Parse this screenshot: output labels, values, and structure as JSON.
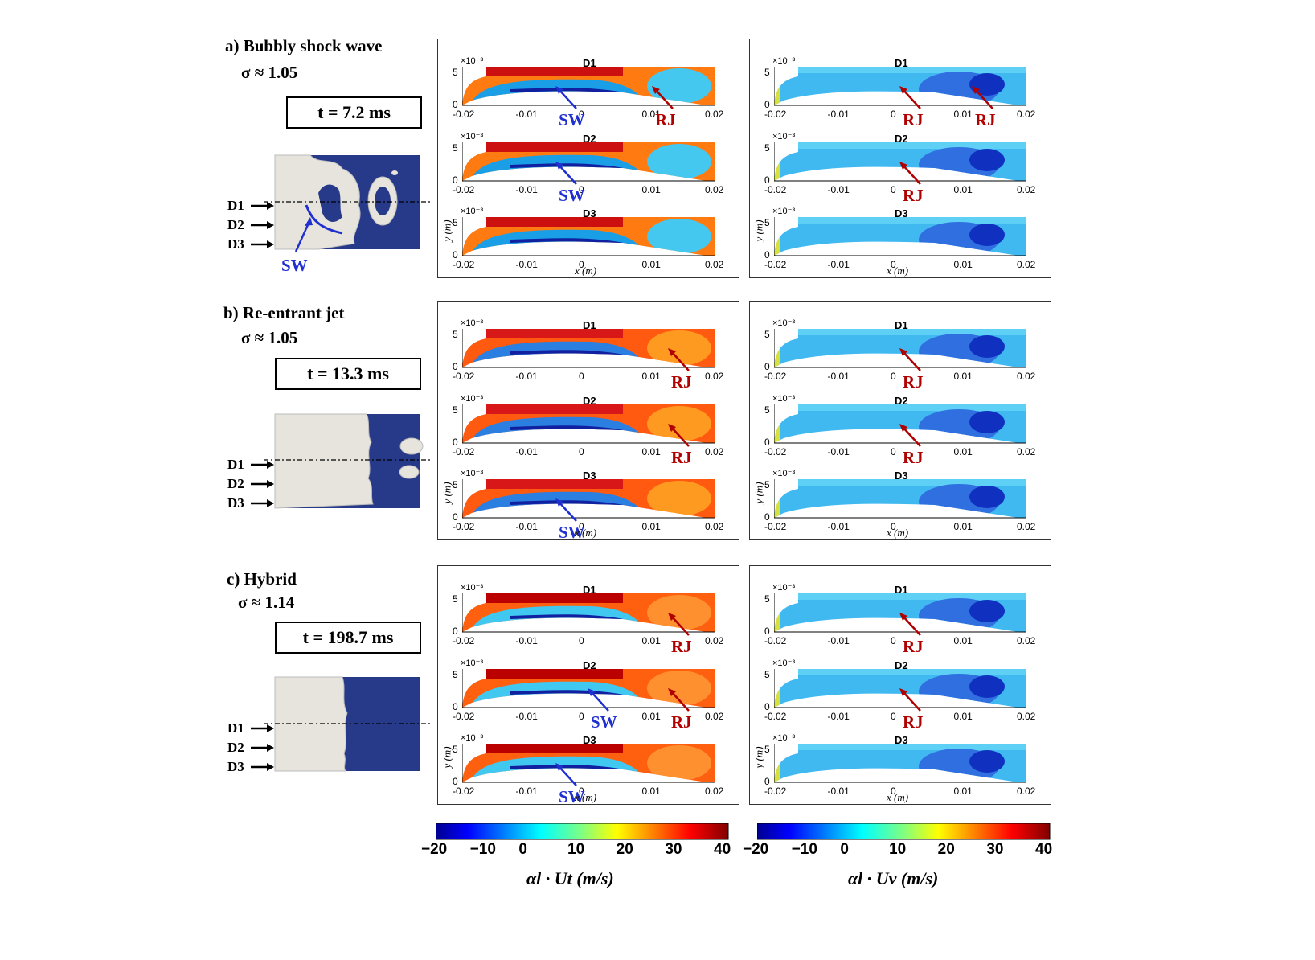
{
  "figure": {
    "rows": [
      {
        "id": "a",
        "title": "a) Bubbly shock wave",
        "sigma": "σ ≈ 1.05",
        "time": "t = 7.2 ms",
        "stations": [
          "D1",
          "D2",
          "D3"
        ],
        "render_annotation": "SW",
        "left_panel": {
          "plots": [
            {
              "label": "D1",
              "annotations": [
                "SW",
                "RJ"
              ]
            },
            {
              "label": "D2",
              "annotations": [
                "SW"
              ]
            },
            {
              "label": "D3",
              "annotations": []
            }
          ]
        },
        "right_panel": {
          "plots": [
            {
              "label": "D1",
              "annotations": [
                "RJ",
                "RJ"
              ]
            },
            {
              "label": "D2",
              "annotations": [
                "RJ"
              ]
            },
            {
              "label": "D3",
              "annotations": []
            }
          ]
        }
      },
      {
        "id": "b",
        "title": "b) Re-entrant jet",
        "sigma": "σ ≈ 1.05",
        "time": "t = 13.3 ms",
        "stations": [
          "D1",
          "D2",
          "D3"
        ],
        "left_panel": {
          "plots": [
            {
              "label": "D1",
              "annotations": [
                "RJ"
              ]
            },
            {
              "label": "D2",
              "annotations": [
                "RJ"
              ]
            },
            {
              "label": "D3",
              "annotations": [
                "SW"
              ]
            }
          ]
        },
        "right_panel": {
          "plots": [
            {
              "label": "D1",
              "annotations": [
                "RJ"
              ]
            },
            {
              "label": "D2",
              "annotations": [
                "RJ"
              ]
            },
            {
              "label": "D3",
              "annotations": []
            }
          ]
        }
      },
      {
        "id": "c",
        "title": "c) Hybrid",
        "sigma": "σ ≈ 1.14",
        "time": "t = 198.7 ms",
        "stations": [
          "D1",
          "D2",
          "D3"
        ],
        "left_panel": {
          "plots": [
            {
              "label": "D1",
              "annotations": [
                "RJ"
              ]
            },
            {
              "label": "D2",
              "annotations": [
                "RJ",
                "SW"
              ]
            },
            {
              "label": "D3",
              "annotations": [
                "SW"
              ]
            }
          ]
        },
        "right_panel": {
          "plots": [
            {
              "label": "D1",
              "annotations": [
                "RJ"
              ]
            },
            {
              "label": "D2",
              "annotations": [
                "RJ"
              ]
            },
            {
              "label": "D3",
              "annotations": []
            }
          ]
        }
      }
    ],
    "axes": {
      "x_ticks": [
        "-0.02",
        "-0.01",
        "0",
        "0.01",
        "0.02"
      ],
      "y_ticks": [
        "0",
        "5"
      ],
      "y_scale": "×10⁻³",
      "xlabel": "x (m)",
      "ylabel": "y (m)"
    },
    "colorbars": [
      {
        "ticks": [
          "−20",
          "−10",
          "0",
          "10",
          "20",
          "30",
          "40"
        ],
        "label": "αl · Ut (m/s)",
        "min": -20,
        "max": 40
      },
      {
        "ticks": [
          "−20",
          "−10",
          "0",
          "10",
          "20",
          "30",
          "40"
        ],
        "label": "αl · Uv (m/s)",
        "min": -20,
        "max": 40
      }
    ],
    "colors": {
      "sw": "#1f2fd0",
      "rj": "#b00000",
      "domain_blue": "#273a8a",
      "vapor_white": "#e6e4dc"
    }
  }
}
